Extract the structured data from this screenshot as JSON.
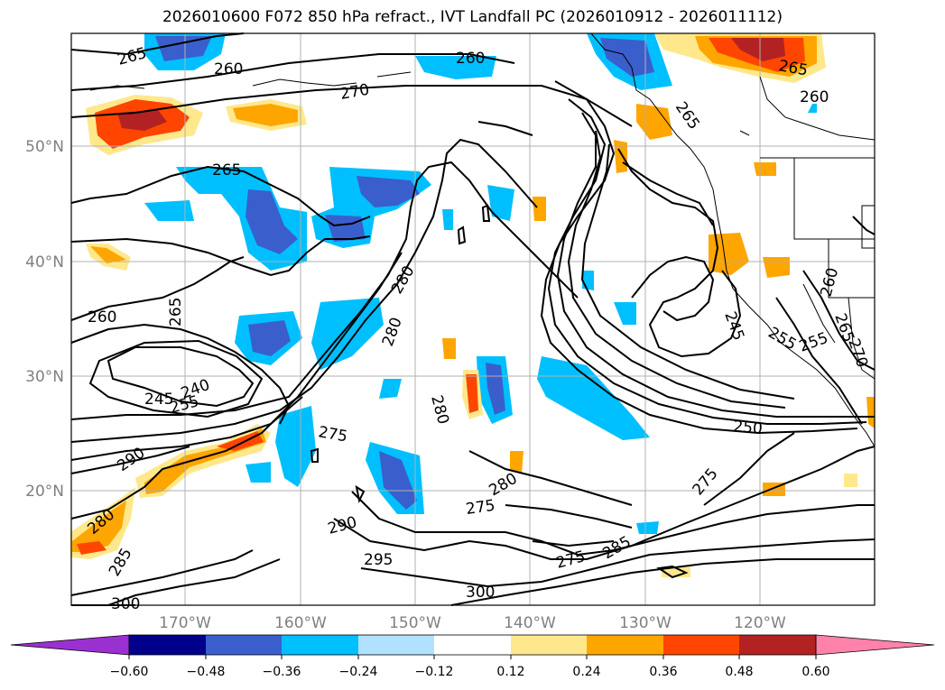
{
  "title": "2026010600 F072 850 hPa refract., IVT Landfall PC (2026010912 - 2026011112)",
  "map": {
    "lat_labels": [
      "50°N",
      "40°N",
      "30°N",
      "20°N"
    ],
    "lon_labels": [
      "170°W",
      "160°W",
      "150°W",
      "140°W",
      "130°W",
      "120°W"
    ],
    "contour_labels": [
      "265",
      "260",
      "260",
      "270",
      "265",
      "260",
      "265",
      "265",
      "280",
      "260",
      "265",
      "280",
      "245",
      "240",
      "255",
      "275",
      "280",
      "290",
      "280",
      "275",
      "290",
      "295",
      "300",
      "275",
      "285",
      "300",
      "250",
      "275",
      "245",
      "255",
      "255",
      "260",
      "270",
      "265",
      "285",
      "280"
    ]
  },
  "colorbar": {
    "ticks": [
      "−0.60",
      "−0.48",
      "−0.36",
      "−0.24",
      "−0.12",
      "0.12",
      "0.24",
      "0.36",
      "0.48",
      "0.60"
    ],
    "colors": [
      "#9b30d0",
      "#00008b",
      "#3a5fcd",
      "#00bfff",
      "#b0e2ff",
      "#ffffff",
      "#ffe88c",
      "#ffa500",
      "#ff4500",
      "#b22222",
      "#ff82ab"
    ]
  }
}
